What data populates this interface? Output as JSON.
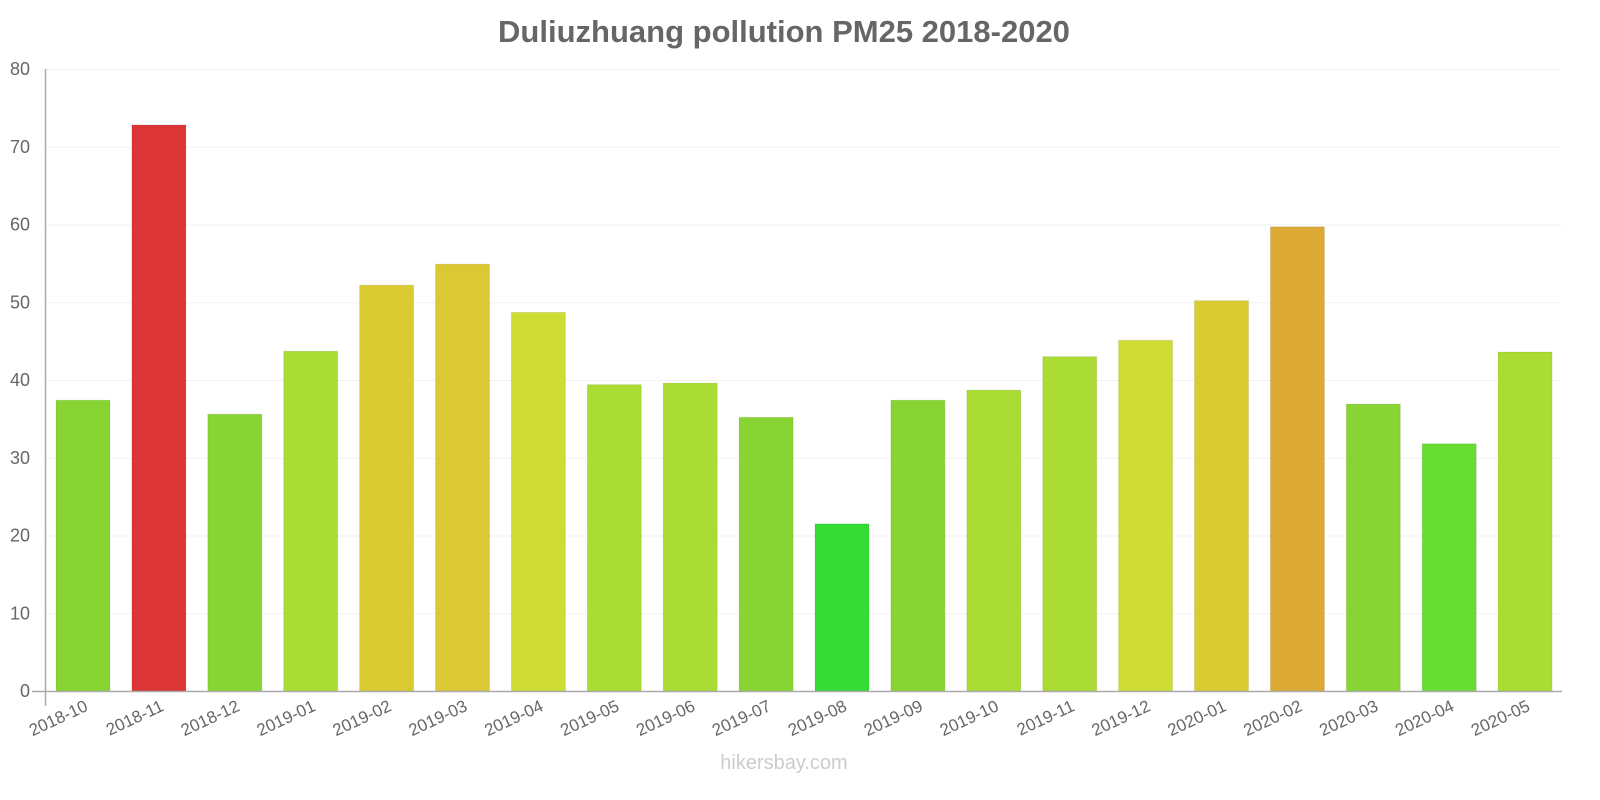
{
  "chart_data": {
    "type": "bar",
    "title": "Duliuzhuang pollution PM25 2018-2020",
    "xlabel": "",
    "ylabel": "",
    "ylim": [
      0,
      80
    ],
    "yticks": [
      0,
      10,
      20,
      30,
      40,
      50,
      60,
      70,
      80
    ],
    "grid": true,
    "legend": null,
    "categories": [
      "2018-10",
      "2018-11",
      "2018-12",
      "2019-01",
      "2019-02",
      "2019-03",
      "2019-04",
      "2019-05",
      "2019-06",
      "2019-07",
      "2019-08",
      "2019-09",
      "2019-10",
      "2019-11",
      "2019-12",
      "2020-01",
      "2020-02",
      "2020-03",
      "2020-04",
      "2020-05"
    ],
    "values": [
      37.4,
      72.8,
      35.6,
      43.7,
      52.2,
      54.9,
      48.7,
      39.4,
      39.6,
      35.2,
      21.5,
      37.4,
      38.7,
      43.0,
      45.1,
      50.2,
      59.7,
      36.9,
      31.8,
      43.6
    ],
    "colors": [
      "#87d433",
      "#dc3535",
      "#87d433",
      "#abdc33",
      "#dbcb33",
      "#dbc833",
      "#cfdc33",
      "#abdc33",
      "#abdc33",
      "#87d433",
      "#34dc35",
      "#87d433",
      "#abdc33",
      "#abdc33",
      "#cfdc33",
      "#dbcb33",
      "#dca935",
      "#87d433",
      "#67dc33",
      "#abdc33"
    ]
  },
  "watermark": "hikersbay.com"
}
